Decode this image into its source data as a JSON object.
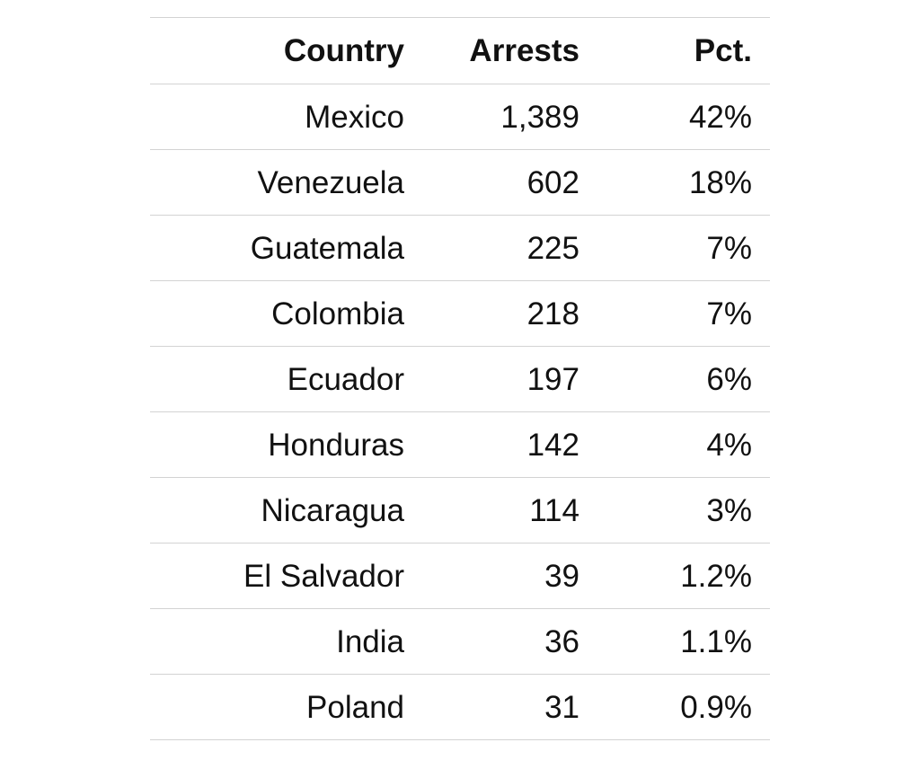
{
  "chart_data": {
    "type": "table",
    "columns": [
      "Country",
      "Arrests",
      "Pct."
    ],
    "rows": [
      {
        "country": "Mexico",
        "arrests": "1,389",
        "pct": "42%"
      },
      {
        "country": "Venezuela",
        "arrests": "602",
        "pct": "18%"
      },
      {
        "country": "Guatemala",
        "arrests": "225",
        "pct": "7%"
      },
      {
        "country": "Colombia",
        "arrests": "218",
        "pct": "7%"
      },
      {
        "country": "Ecuador",
        "arrests": "197",
        "pct": "6%"
      },
      {
        "country": "Honduras",
        "arrests": "142",
        "pct": "4%"
      },
      {
        "country": "Nicaragua",
        "arrests": "114",
        "pct": "3%"
      },
      {
        "country": "El Salvador",
        "arrests": "39",
        "pct": "1.2%"
      },
      {
        "country": "India",
        "arrests": "36",
        "pct": "1.1%"
      },
      {
        "country": "Poland",
        "arrests": "31",
        "pct": "0.9%"
      }
    ]
  },
  "colors": {
    "text": "#111111",
    "rule": "#d3d3d3",
    "background": "#ffffff"
  }
}
